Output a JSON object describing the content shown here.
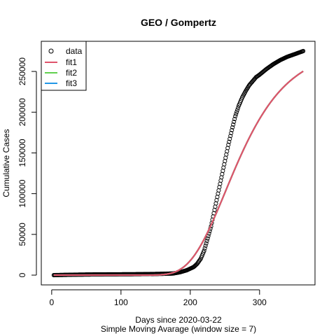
{
  "chart_data": {
    "type": "scatter",
    "title": "GEO / Gompertz",
    "xlabel": "Days since 2020-03-22",
    "xlabel_sub": "Simple Moving Avarage (window size = 7)",
    "ylabel": "Cumulative Cases",
    "xlim": [
      -15,
      380
    ],
    "ylim": [
      -12000,
      287000
    ],
    "x_ticks": [
      0,
      100,
      200,
      300
    ],
    "y_ticks": [
      0,
      50000,
      100000,
      150000,
      200000,
      250000
    ],
    "x_tick_labels": [
      "0",
      "100",
      "200",
      "300"
    ],
    "y_tick_labels": [
      "0",
      "50000",
      "100000",
      "150000",
      "200000",
      "250000"
    ],
    "legend_position": "top-left",
    "data_points": {
      "name": "data",
      "x_range": [
        3,
        363
      ],
      "anchors": [
        [
          3,
          0
        ],
        [
          20,
          300
        ],
        [
          40,
          600
        ],
        [
          60,
          800
        ],
        [
          80,
          900
        ],
        [
          100,
          1000
        ],
        [
          120,
          1100
        ],
        [
          140,
          1300
        ],
        [
          160,
          1600
        ],
        [
          175,
          2000
        ],
        [
          185,
          3500
        ],
        [
          195,
          6000
        ],
        [
          205,
          10000
        ],
        [
          210,
          14000
        ],
        [
          215,
          20000
        ],
        [
          220,
          30000
        ],
        [
          225,
          45000
        ],
        [
          230,
          60000
        ],
        [
          235,
          80000
        ],
        [
          240,
          100000
        ],
        [
          245,
          120000
        ],
        [
          250,
          140000
        ],
        [
          255,
          160000
        ],
        [
          260,
          178000
        ],
        [
          265,
          195000
        ],
        [
          270,
          208000
        ],
        [
          275,
          218000
        ],
        [
          280,
          226000
        ],
        [
          285,
          233000
        ],
        [
          290,
          238000
        ],
        [
          295,
          243000
        ],
        [
          300,
          246000
        ],
        [
          310,
          253000
        ],
        [
          320,
          259000
        ],
        [
          330,
          264000
        ],
        [
          340,
          268000
        ],
        [
          350,
          271000
        ],
        [
          363,
          275000
        ]
      ]
    },
    "fits": [
      {
        "name": "fit1",
        "color": "#DF536B",
        "a": 278000,
        "b": 150,
        "c": 0.02
      },
      {
        "name": "fit2",
        "color": "#61D04F",
        "a": 278000,
        "b": 150,
        "c": 0.02
      },
      {
        "name": "fit3",
        "color": "#2297E6",
        "a": 278000,
        "b": 150,
        "c": 0.02
      }
    ],
    "fit_x_range": [
      3,
      363
    ]
  }
}
